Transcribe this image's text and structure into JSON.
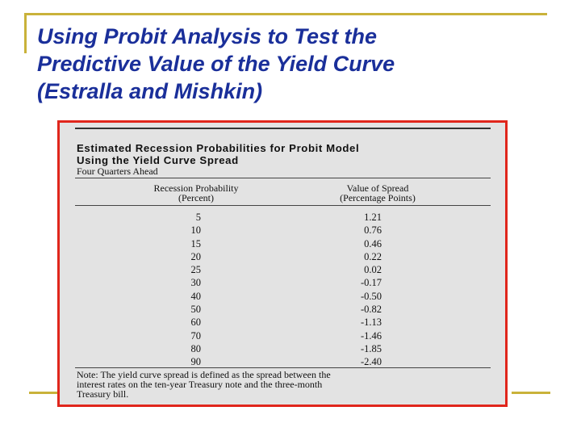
{
  "slide": {
    "title_lines": [
      "Using Probit Analysis to Test the",
      "Predictive Value of the Yield Curve",
      "(Estralla and Mishkin)"
    ]
  },
  "table": {
    "title_lines": [
      "Estimated Recession Probabilities for Probit Model",
      "Using the Yield Curve Spread"
    ],
    "subtitle": "Four Quarters Ahead",
    "column_headers": [
      [
        "Recession Probability",
        "(Percent)"
      ],
      [
        "Value of Spread",
        "(Percentage Points)"
      ]
    ],
    "rows": [
      {
        "probability": "5",
        "spread": "1.21"
      },
      {
        "probability": "10",
        "spread": "0.76"
      },
      {
        "probability": "15",
        "spread": "0.46"
      },
      {
        "probability": "20",
        "spread": "0.22"
      },
      {
        "probability": "25",
        "spread": "0.02"
      },
      {
        "probability": "30",
        "spread": "-0.17"
      },
      {
        "probability": "40",
        "spread": "-0.50"
      },
      {
        "probability": "50",
        "spread": "-0.82"
      },
      {
        "probability": "60",
        "spread": "-1.13"
      },
      {
        "probability": "70",
        "spread": "-1.46"
      },
      {
        "probability": "80",
        "spread": "-1.85"
      },
      {
        "probability": "90",
        "spread": "-2.40"
      }
    ],
    "note_lines": [
      "Note: The yield curve spread is defined as the spread between the",
      "interest rates on the ten-year Treasury note and the three-month",
      "Treasury bill."
    ]
  },
  "colors": {
    "title": "#1a2f9a",
    "accent_lines": "#c9b23a",
    "frame_border": "#e0261c",
    "table_background": "#e3e3e3"
  }
}
